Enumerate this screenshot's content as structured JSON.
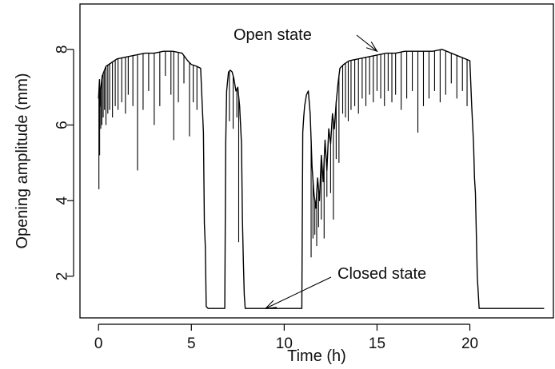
{
  "chart_data": {
    "type": "line",
    "title": "",
    "xlabel": "Time (h)",
    "ylabel": "Opening amplitude (mm)",
    "xlim": [
      -1,
      24.5
    ],
    "ylim": [
      0.9,
      9.2
    ],
    "x_ticks": [
      0,
      5,
      10,
      15,
      20
    ],
    "x_tick_labels": [
      "0",
      "5",
      "10",
      "15",
      "20"
    ],
    "y_ticks": [
      2,
      4,
      6,
      8
    ],
    "y_tick_labels": [
      "2",
      "4",
      "6",
      "8"
    ],
    "grid": false,
    "legend": "none",
    "line_color": "#000000",
    "annotations": [
      {
        "text": "Open state",
        "target": [
          15.0,
          7.95
        ]
      },
      {
        "text": "Closed state",
        "target": [
          9.0,
          1.15
        ]
      }
    ],
    "series": [
      {
        "name": "",
        "x": [
          0.0,
          0.05,
          0.08,
          0.1,
          0.2,
          0.4,
          0.7,
          1.0,
          1.5,
          2.0,
          2.5,
          3.0,
          3.5,
          4.0,
          4.5,
          4.8,
          5.0,
          5.3,
          5.5,
          5.65,
          5.7,
          5.75,
          5.8,
          5.9,
          6.0,
          6.5,
          6.8,
          6.85,
          6.9,
          7.0,
          7.1,
          7.2,
          7.3,
          7.4,
          7.5,
          7.6,
          7.7,
          7.75,
          7.8,
          7.85,
          7.9,
          8.0,
          9.0,
          10.0,
          10.95,
          11.0,
          11.05,
          11.1,
          11.2,
          11.3,
          11.4,
          11.5,
          11.6,
          11.7,
          11.8,
          11.9,
          12.0,
          12.1,
          12.2,
          12.3,
          12.4,
          12.5,
          12.6,
          12.7,
          12.8,
          12.9,
          13.0,
          13.2,
          13.5,
          14.0,
          14.5,
          15.0,
          15.5,
          16.0,
          16.5,
          17.0,
          17.5,
          18.0,
          18.5,
          19.0,
          19.5,
          20.0,
          20.1,
          20.2,
          20.25,
          20.3,
          20.4,
          20.5,
          20.6,
          21.0,
          22.0,
          23.0,
          24.0
        ],
        "y": [
          6.7,
          7.2,
          6.5,
          6.9,
          7.3,
          7.55,
          7.65,
          7.75,
          7.8,
          7.85,
          7.9,
          7.9,
          7.95,
          7.95,
          7.9,
          7.7,
          7.6,
          7.55,
          7.5,
          5.8,
          3.4,
          2.8,
          1.2,
          1.15,
          1.15,
          1.15,
          1.15,
          5.5,
          6.9,
          7.4,
          7.45,
          7.4,
          7.2,
          6.9,
          7.0,
          6.5,
          5.5,
          3.5,
          2.4,
          1.5,
          1.15,
          1.15,
          1.15,
          1.15,
          1.15,
          5.8,
          6.2,
          6.5,
          6.8,
          6.9,
          6.3,
          4.9,
          4.2,
          3.8,
          4.6,
          4.0,
          5.2,
          4.5,
          5.6,
          4.8,
          5.9,
          5.5,
          6.3,
          5.9,
          6.6,
          7.1,
          7.5,
          7.6,
          7.7,
          7.75,
          7.8,
          7.85,
          7.9,
          7.9,
          7.95,
          7.95,
          7.95,
          7.95,
          8.0,
          7.9,
          7.8,
          7.7,
          6.5,
          5.5,
          4.6,
          4.2,
          2.0,
          1.15,
          1.15,
          1.15,
          1.15,
          1.15,
          1.15
        ],
        "dips": [
          [
            0.02,
            4.3
          ],
          [
            0.06,
            5.2
          ],
          [
            0.12,
            5.9
          ],
          [
            0.18,
            6.0
          ],
          [
            0.25,
            6.2
          ],
          [
            0.32,
            6.4
          ],
          [
            0.4,
            6.0
          ],
          [
            0.5,
            6.3
          ],
          [
            0.6,
            6.4
          ],
          [
            0.75,
            6.2
          ],
          [
            0.9,
            6.5
          ],
          [
            1.05,
            6.4
          ],
          [
            1.25,
            6.6
          ],
          [
            1.45,
            6.3
          ],
          [
            1.6,
            6.8
          ],
          [
            1.85,
            6.5
          ],
          [
            2.1,
            4.8
          ],
          [
            2.4,
            6.4
          ],
          [
            2.7,
            6.9
          ],
          [
            3.0,
            6.0
          ],
          [
            3.3,
            6.5
          ],
          [
            3.6,
            7.3
          ],
          [
            3.9,
            6.8
          ],
          [
            4.05,
            5.6
          ],
          [
            4.3,
            6.6
          ],
          [
            4.6,
            7.1
          ],
          [
            4.9,
            5.7
          ],
          [
            5.1,
            6.6
          ],
          [
            5.3,
            6.4
          ],
          [
            7.05,
            6.1
          ],
          [
            7.25,
            5.9
          ],
          [
            7.45,
            6.2
          ],
          [
            7.55,
            2.9
          ],
          [
            11.45,
            2.5
          ],
          [
            11.55,
            3.0
          ],
          [
            11.65,
            3.1
          ],
          [
            11.75,
            2.8
          ],
          [
            11.85,
            3.3
          ],
          [
            12.0,
            3.5
          ],
          [
            12.15,
            3.0
          ],
          [
            12.3,
            4.1
          ],
          [
            12.5,
            4.2
          ],
          [
            12.65,
            3.5
          ],
          [
            12.8,
            5.1
          ],
          [
            12.95,
            5.0
          ],
          [
            13.15,
            6.3
          ],
          [
            13.3,
            6.2
          ],
          [
            13.45,
            6.1
          ],
          [
            13.6,
            6.4
          ],
          [
            13.8,
            6.5
          ],
          [
            14.0,
            6.3
          ],
          [
            14.2,
            6.7
          ],
          [
            14.4,
            6.5
          ],
          [
            14.6,
            6.8
          ],
          [
            14.8,
            6.6
          ],
          [
            15.0,
            6.9
          ],
          [
            15.2,
            6.7
          ],
          [
            15.4,
            6.5
          ],
          [
            15.6,
            6.9
          ],
          [
            15.8,
            6.6
          ],
          [
            16.0,
            6.8
          ],
          [
            16.3,
            6.4
          ],
          [
            16.6,
            6.7
          ],
          [
            16.9,
            6.9
          ],
          [
            17.2,
            5.8
          ],
          [
            17.5,
            6.5
          ],
          [
            17.8,
            6.7
          ],
          [
            18.1,
            6.9
          ],
          [
            18.4,
            6.6
          ],
          [
            18.7,
            6.8
          ],
          [
            19.0,
            7.1
          ],
          [
            19.3,
            6.7
          ],
          [
            19.6,
            6.9
          ],
          [
            19.85,
            6.5
          ]
        ]
      }
    ]
  }
}
